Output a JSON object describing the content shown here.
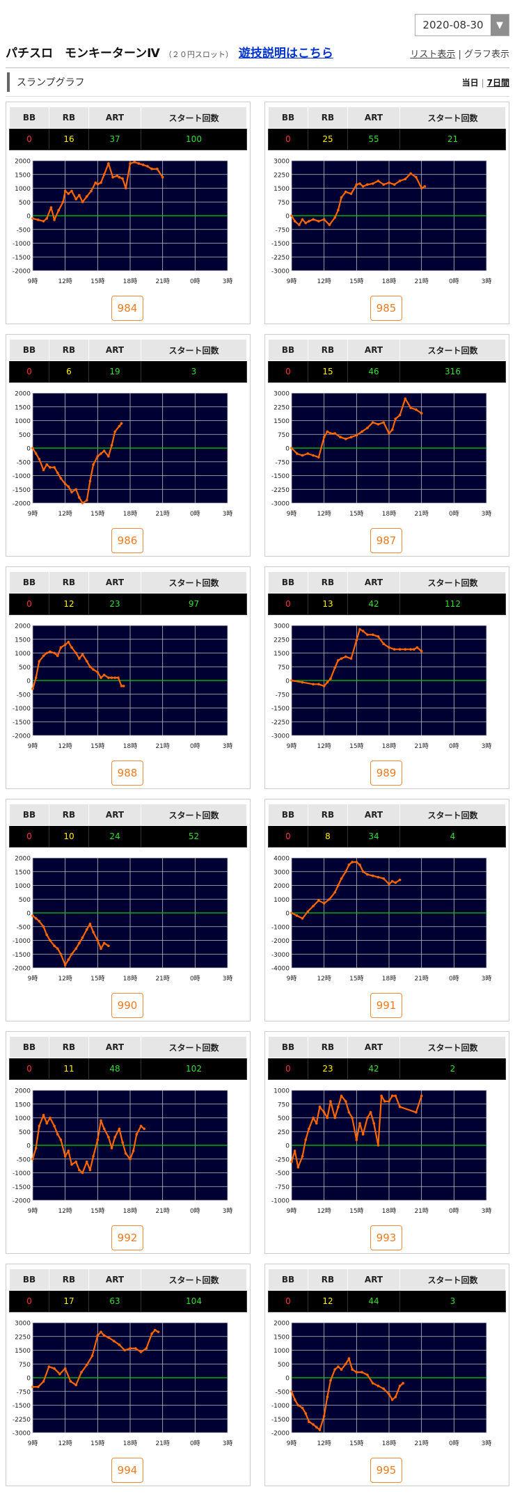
{
  "date_select": {
    "value": "2020-08-30"
  },
  "header": {
    "machine_name": "パチスロ　モンキーターンⅣ",
    "machine_sub": "（２０円スロット）",
    "howto_link": "遊技説明はこちら",
    "list_view": "リスト表示",
    "graph_view": "グラフ表示"
  },
  "section": {
    "title": "スランプグラフ",
    "today": "当日",
    "week": "7日間"
  },
  "table_headers": {
    "bb": "BB",
    "rb": "RB",
    "art": "ART",
    "start": "スタート回数"
  },
  "x_tick_labels": [
    "9時",
    "12時",
    "15時",
    "18時",
    "21時",
    "0時",
    "3時"
  ],
  "colors": {
    "line": "#ff6600",
    "plot_bg": "#000033",
    "grid": "#c0c0c0",
    "zero_line": "#00cc00"
  },
  "chart_data": [
    {
      "type": "line",
      "unit": "984",
      "bb": "0",
      "rb": "16",
      "art": "37",
      "start": "100",
      "ylim": [
        -2000,
        2000
      ],
      "yticks": [
        "2000",
        "1500",
        "1000",
        "500",
        "0",
        "-500",
        "-1000",
        "-1500",
        "-2000"
      ],
      "x": [
        9,
        9.5,
        10,
        10.3,
        10.7,
        11,
        11.4,
        11.8,
        12,
        12.3,
        12.6,
        13,
        13.3,
        13.6,
        14,
        14.4,
        14.8,
        15,
        15.3,
        15.6,
        16,
        16.4,
        16.8,
        17,
        17.3,
        17.6,
        18,
        18.4,
        18.8,
        19.2,
        19.6,
        20,
        20.5,
        21
      ],
      "y": [
        -100,
        -150,
        -200,
        -100,
        300,
        -150,
        200,
        500,
        900,
        800,
        900,
        600,
        750,
        500,
        700,
        900,
        1200,
        1150,
        1200,
        1500,
        1900,
        1400,
        1450,
        1400,
        1350,
        1000,
        1900,
        1950,
        1900,
        1850,
        1800,
        1700,
        1700,
        1400
      ]
    },
    {
      "type": "line",
      "unit": "985",
      "bb": "0",
      "rb": "25",
      "art": "55",
      "start": "21",
      "ylim": [
        -3000,
        3000
      ],
      "yticks": [
        "3000",
        "2250",
        "1500",
        "750",
        "0",
        "-750",
        "-1500",
        "-2250",
        "-3000"
      ],
      "x": [
        9,
        9.3,
        9.7,
        10,
        10.3,
        10.6,
        11,
        11.5,
        12,
        12.5,
        13,
        13.3,
        13.6,
        14,
        14.5,
        15,
        15.3,
        15.6,
        16,
        16.5,
        17,
        17.5,
        18,
        18.5,
        19,
        19.5,
        20,
        20.5,
        21,
        21.3
      ],
      "y": [
        0,
        -300,
        -500,
        -200,
        -400,
        -300,
        -200,
        -300,
        -200,
        -500,
        -100,
        300,
        1000,
        1300,
        1200,
        1700,
        1750,
        1600,
        1700,
        1750,
        1900,
        1700,
        1800,
        1700,
        1900,
        2000,
        2300,
        2100,
        1500,
        1600
      ]
    },
    {
      "type": "line",
      "unit": "986",
      "bb": "0",
      "rb": "6",
      "art": "19",
      "start": "3",
      "ylim": [
        -2000,
        2000
      ],
      "yticks": [
        "2000",
        "1500",
        "1000",
        "500",
        "0",
        "-500",
        "-1000",
        "-1500",
        "-2000"
      ],
      "x": [
        9,
        9.3,
        9.6,
        10,
        10.3,
        10.6,
        11,
        11.3,
        11.6,
        12,
        12.3,
        12.6,
        13,
        13.3,
        13.6,
        14,
        14.3,
        14.6,
        15,
        15.3,
        15.6,
        16,
        16.3,
        16.6,
        17,
        17.2
      ],
      "y": [
        0,
        -200,
        -400,
        -800,
        -600,
        -700,
        -700,
        -900,
        -1100,
        -1300,
        -1400,
        -1600,
        -1500,
        -1800,
        -2000,
        -1900,
        -1200,
        -600,
        -300,
        -200,
        -100,
        -300,
        100,
        600,
        800,
        900
      ]
    },
    {
      "type": "line",
      "unit": "987",
      "bb": "0",
      "rb": "15",
      "art": "46",
      "start": "316",
      "ylim": [
        -3000,
        3000
      ],
      "yticks": [
        "3000",
        "2250",
        "1500",
        "750",
        "0",
        "-750",
        "-1500",
        "-2250",
        "-3000"
      ],
      "x": [
        9,
        9.5,
        10,
        10.5,
        11,
        11.5,
        12,
        12.3,
        12.6,
        13,
        13.5,
        14,
        14.5,
        15,
        15.5,
        16,
        16.5,
        17,
        17.5,
        18,
        18.3,
        18.6,
        19,
        19.5,
        20,
        20.5,
        21
      ],
      "y": [
        0,
        -300,
        -400,
        -300,
        -400,
        -500,
        600,
        900,
        800,
        800,
        600,
        500,
        600,
        700,
        900,
        1100,
        1400,
        1300,
        1400,
        800,
        1000,
        1600,
        1800,
        2700,
        2200,
        2100,
        1900
      ]
    },
    {
      "type": "line",
      "unit": "988",
      "bb": "0",
      "rb": "12",
      "art": "23",
      "start": "97",
      "ylim": [
        -2000,
        2000
      ],
      "yticks": [
        "2000",
        "1500",
        "1000",
        "500",
        "0",
        "-500",
        "-1000",
        "-1500",
        "-2000"
      ],
      "x": [
        9,
        9.3,
        9.6,
        10,
        10.3,
        10.6,
        11,
        11.3,
        11.6,
        12,
        12.3,
        12.6,
        13,
        13.3,
        13.6,
        14,
        14.3,
        14.6,
        15,
        15.3,
        15.6,
        16,
        16.3,
        16.6,
        16.9,
        17.2,
        17.4
      ],
      "y": [
        -300,
        100,
        700,
        900,
        1000,
        1050,
        1000,
        900,
        1200,
        1300,
        1400,
        1200,
        1000,
        800,
        950,
        700,
        500,
        400,
        300,
        100,
        200,
        100,
        100,
        100,
        100,
        -200,
        -200
      ]
    },
    {
      "type": "line",
      "unit": "989",
      "bb": "0",
      "rb": "13",
      "art": "42",
      "start": "112",
      "ylim": [
        -3000,
        3000
      ],
      "yticks": [
        "3000",
        "2250",
        "1500",
        "750",
        "0",
        "-750",
        "-1500",
        "-2250",
        "-3000"
      ],
      "x": [
        9,
        10,
        11,
        11.5,
        12,
        12.3,
        12.6,
        13,
        13.3,
        13.6,
        14,
        14.5,
        15,
        15.3,
        15.6,
        16,
        16.5,
        17,
        17.5,
        18,
        18.5,
        19,
        19.5,
        20,
        20.3,
        20.6,
        21
      ],
      "y": [
        0,
        -100,
        -200,
        -200,
        -300,
        -100,
        100,
        700,
        1100,
        1200,
        1300,
        1200,
        2200,
        2800,
        2700,
        2500,
        2500,
        2400,
        2000,
        1800,
        1700,
        1700,
        1700,
        1700,
        1700,
        1800,
        1600
      ]
    },
    {
      "type": "line",
      "unit": "990",
      "bb": "0",
      "rb": "10",
      "art": "24",
      "start": "52",
      "ylim": [
        -2000,
        2000
      ],
      "yticks": [
        "2000",
        "1500",
        "1000",
        "500",
        "0",
        "-500",
        "-1000",
        "-1500",
        "-2000"
      ],
      "x": [
        9,
        9.3,
        9.6,
        10,
        10.3,
        10.6,
        11,
        11.3,
        11.6,
        12,
        12.3,
        12.6,
        13,
        13.3,
        13.6,
        14,
        14.3,
        14.6,
        15,
        15.3,
        15.6,
        16
      ],
      "y": [
        -100,
        -200,
        -300,
        -500,
        -800,
        -1000,
        -1200,
        -1300,
        -1500,
        -1900,
        -1700,
        -1500,
        -1300,
        -1100,
        -900,
        -600,
        -400,
        -700,
        -1000,
        -1300,
        -1100,
        -1200
      ]
    },
    {
      "type": "line",
      "unit": "991",
      "bb": "0",
      "rb": "8",
      "art": "34",
      "start": "4",
      "ylim": [
        -4000,
        4000
      ],
      "yticks": [
        "4000",
        "3000",
        "2000",
        "1000",
        "0",
        "-1000",
        "-2000",
        "-3000",
        "-4000"
      ],
      "x": [
        9,
        9.5,
        10,
        10.5,
        11,
        11.5,
        12,
        12.5,
        13,
        13.3,
        13.6,
        14,
        14.3,
        14.6,
        15,
        15.3,
        15.6,
        16,
        16.5,
        17,
        17.5,
        18,
        18.3,
        18.6,
        19
      ],
      "y": [
        0,
        -200,
        -400,
        100,
        500,
        900,
        700,
        1000,
        1500,
        2000,
        2500,
        3000,
        3500,
        3700,
        3700,
        3500,
        3000,
        2800,
        2700,
        2600,
        2500,
        2100,
        2300,
        2200,
        2400
      ]
    },
    {
      "type": "line",
      "unit": "992",
      "bb": "0",
      "rb": "11",
      "art": "48",
      "start": "102",
      "ylim": [
        -2000,
        2000
      ],
      "yticks": [
        "2000",
        "1500",
        "1000",
        "500",
        "0",
        "-500",
        "-1000",
        "-1500",
        "-2000"
      ],
      "x": [
        9,
        9.3,
        9.6,
        10,
        10.3,
        10.6,
        11,
        11.3,
        11.6,
        12,
        12.3,
        12.6,
        13,
        13.3,
        13.6,
        14,
        14.3,
        14.6,
        15,
        15.3,
        15.6,
        16,
        16.3,
        16.6,
        17,
        17.3,
        17.6,
        18,
        18.3,
        18.6,
        19,
        19.3
      ],
      "y": [
        -500,
        -100,
        700,
        1100,
        800,
        1000,
        700,
        400,
        200,
        -400,
        -200,
        -700,
        -600,
        -900,
        -1000,
        -600,
        -900,
        -400,
        200,
        900,
        600,
        300,
        -100,
        300,
        600,
        100,
        -300,
        -500,
        -200,
        400,
        700,
        600
      ]
    },
    {
      "type": "line",
      "unit": "993",
      "bb": "0",
      "rb": "23",
      "art": "42",
      "start": "2",
      "ylim": [
        -1000,
        1000
      ],
      "yticks": [
        "1000",
        "750",
        "500",
        "250",
        "0",
        "-250",
        "-500",
        "-750",
        "-1000"
      ],
      "x": [
        9,
        9.3,
        9.6,
        10,
        10.3,
        10.6,
        11,
        11.3,
        11.6,
        12,
        12.3,
        12.6,
        13,
        13.3,
        13.6,
        14,
        14.3,
        14.6,
        15,
        15.3,
        15.6,
        16,
        16.3,
        16.6,
        17,
        17.3,
        17.6,
        18,
        18.3,
        18.6,
        19,
        20.5,
        21
      ],
      "y": [
        -300,
        -100,
        -400,
        -200,
        100,
        300,
        500,
        400,
        700,
        600,
        500,
        800,
        500,
        700,
        900,
        800,
        600,
        500,
        100,
        400,
        200,
        500,
        600,
        400,
        0,
        900,
        800,
        800,
        900,
        900,
        700,
        600,
        900
      ]
    },
    {
      "type": "line",
      "unit": "994",
      "bb": "0",
      "rb": "17",
      "art": "63",
      "start": "104",
      "ylim": [
        -3000,
        3000
      ],
      "yticks": [
        "3000",
        "2250",
        "1500",
        "750",
        "0",
        "-750",
        "-1500",
        "-2250",
        "-3000"
      ],
      "x": [
        9,
        9.5,
        10,
        10.5,
        11,
        11.5,
        12,
        12.5,
        13,
        13.5,
        14,
        14.5,
        15,
        15.3,
        15.6,
        16,
        16.5,
        17,
        17.5,
        18,
        18.5,
        19,
        19.5,
        20,
        20.3,
        20.6
      ],
      "y": [
        -500,
        -500,
        -200,
        600,
        500,
        200,
        500,
        -200,
        -400,
        300,
        700,
        1200,
        2300,
        2500,
        2300,
        2200,
        2000,
        1800,
        1500,
        1600,
        1600,
        1400,
        1600,
        2400,
        2600,
        2500
      ]
    },
    {
      "type": "line",
      "unit": "995",
      "bb": "0",
      "rb": "12",
      "art": "44",
      "start": "3",
      "ylim": [
        -2000,
        2000
      ],
      "yticks": [
        "2000",
        "1500",
        "1000",
        "500",
        "0",
        "-500",
        "-1000",
        "-1500",
        "-2000"
      ],
      "x": [
        9,
        9.3,
        9.6,
        10,
        10.3,
        10.6,
        11,
        11.3,
        11.6,
        12,
        12.3,
        12.6,
        13,
        13.3,
        13.6,
        14,
        14.3,
        14.6,
        15,
        15.5,
        16,
        16.5,
        17,
        17.5,
        18,
        18.3,
        18.6,
        19,
        19.3
      ],
      "y": [
        -500,
        -800,
        -1000,
        -1100,
        -1300,
        -1600,
        -1700,
        -1800,
        -1900,
        -1400,
        -700,
        -100,
        300,
        400,
        300,
        500,
        700,
        300,
        200,
        200,
        100,
        -200,
        -300,
        -400,
        -600,
        -800,
        -700,
        -300,
        -200
      ]
    }
  ]
}
